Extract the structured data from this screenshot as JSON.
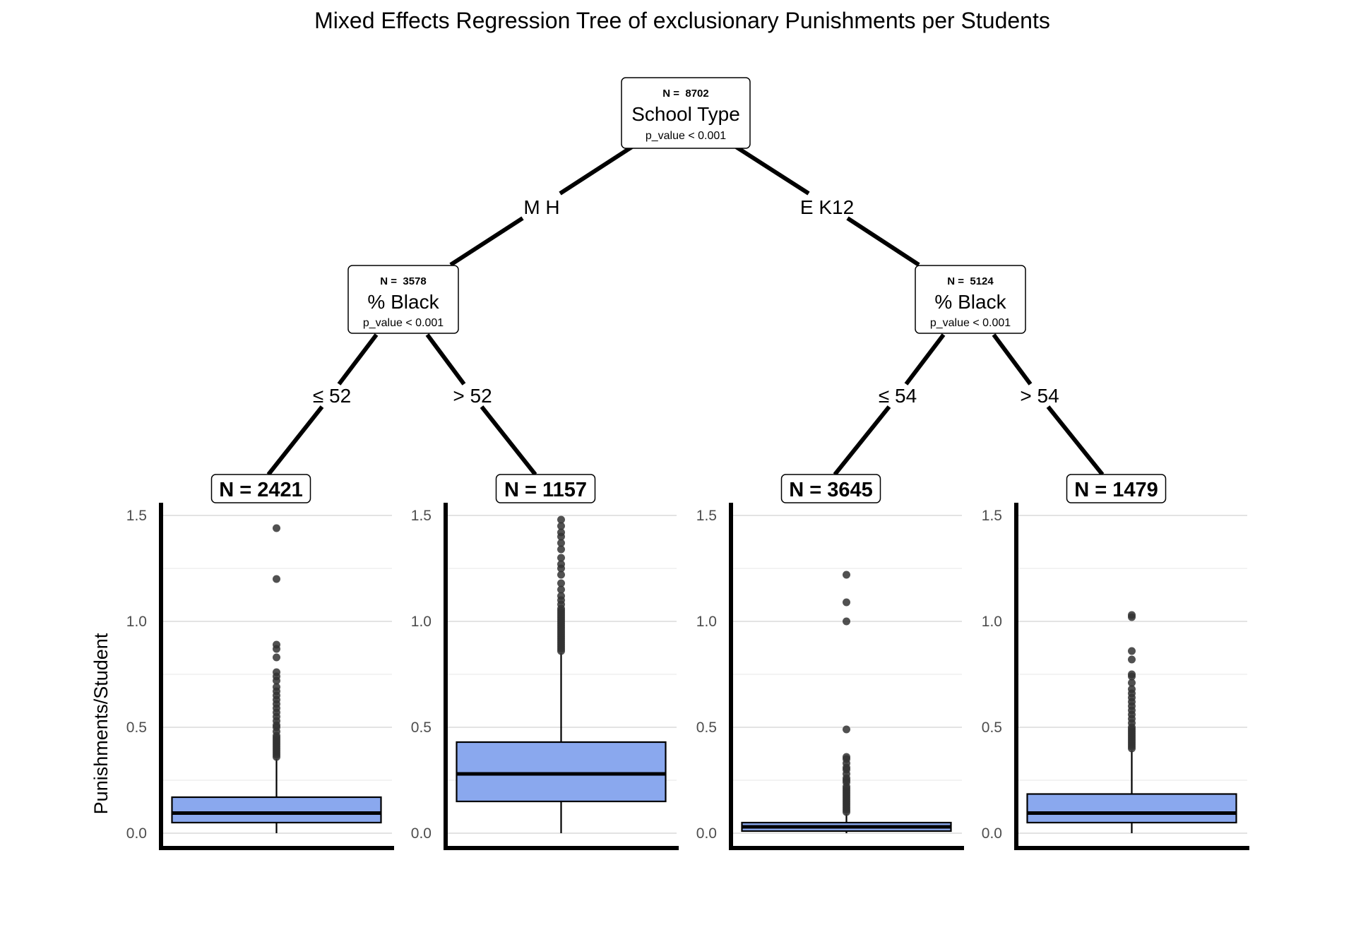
{
  "chart_data": {
    "type": "box",
    "title": "Mixed Effects Regression Tree of exclusionary Punishments per Students",
    "ylabel": "Punishments/Student",
    "xlabel": "",
    "ylim": [
      0,
      1.5
    ],
    "yticks": [
      "0.0",
      "0.5",
      "1.0",
      "1.5"
    ],
    "grid": true,
    "box_color": "#8aa8ee",
    "tree": {
      "root": {
        "n_label": "N =  8702",
        "variable": "School Type",
        "p_label": "p_value < 0.001"
      },
      "root_edges": [
        "M H",
        "E K12"
      ],
      "inner": [
        {
          "n_label": "N =  3578",
          "variable": "% Black",
          "p_label": "p_value < 0.001",
          "edges": [
            "≤  52",
            ">  52"
          ]
        },
        {
          "n_label": "N =  5124",
          "variable": "% Black",
          "p_label": "p_value < 0.001",
          "edges": [
            "≤  54",
            ">  54"
          ]
        }
      ]
    },
    "leaves": [
      {
        "label": "N = 2421",
        "q1": 0.05,
        "median": 0.095,
        "q3": 0.17,
        "whisker_low": 0.0,
        "whisker_high": 0.35,
        "outliers": [
          1.44,
          1.2,
          0.89,
          0.87,
          0.83,
          0.76,
          0.74,
          0.72,
          0.69,
          0.67,
          0.65,
          0.63,
          0.61,
          0.59,
          0.57,
          0.55,
          0.53,
          0.51,
          0.5,
          0.48,
          0.46,
          0.45,
          0.44,
          0.43,
          0.42,
          0.41,
          0.4,
          0.39,
          0.38,
          0.37,
          0.36
        ]
      },
      {
        "label": "N = 1157",
        "q1": 0.15,
        "median": 0.28,
        "q3": 0.43,
        "whisker_low": 0.0,
        "whisker_high": 0.85,
        "outliers": [
          1.48,
          1.45,
          1.42,
          1.4,
          1.37,
          1.34,
          1.3,
          1.27,
          1.25,
          1.22,
          1.18,
          1.15,
          1.12,
          1.1,
          1.08,
          1.06,
          1.05,
          1.04,
          1.03,
          1.02,
          1.01,
          1.0,
          0.99,
          0.98,
          0.97,
          0.96,
          0.95,
          0.94,
          0.93,
          0.92,
          0.91,
          0.9,
          0.89,
          0.88,
          0.87,
          0.86
        ]
      },
      {
        "label": "N = 3645",
        "q1": 0.01,
        "median": 0.03,
        "q3": 0.05,
        "whisker_low": 0.0,
        "whisker_high": 0.09,
        "outliers": [
          1.22,
          1.09,
          1.0,
          0.49,
          0.36,
          0.35,
          0.33,
          0.31,
          0.3,
          0.28,
          0.26,
          0.25,
          0.24,
          0.22,
          0.21,
          0.2,
          0.19,
          0.18,
          0.17,
          0.16,
          0.15,
          0.14,
          0.13,
          0.12,
          0.11,
          0.1
        ]
      },
      {
        "label": "N = 1479",
        "q1": 0.05,
        "median": 0.095,
        "q3": 0.185,
        "whisker_low": 0.0,
        "whisker_high": 0.39,
        "outliers": [
          1.03,
          1.02,
          0.86,
          0.82,
          0.75,
          0.74,
          0.71,
          0.68,
          0.66,
          0.64,
          0.62,
          0.6,
          0.58,
          0.56,
          0.54,
          0.52,
          0.5,
          0.49,
          0.48,
          0.47,
          0.46,
          0.45,
          0.44,
          0.43,
          0.42,
          0.41,
          0.4
        ]
      }
    ]
  }
}
